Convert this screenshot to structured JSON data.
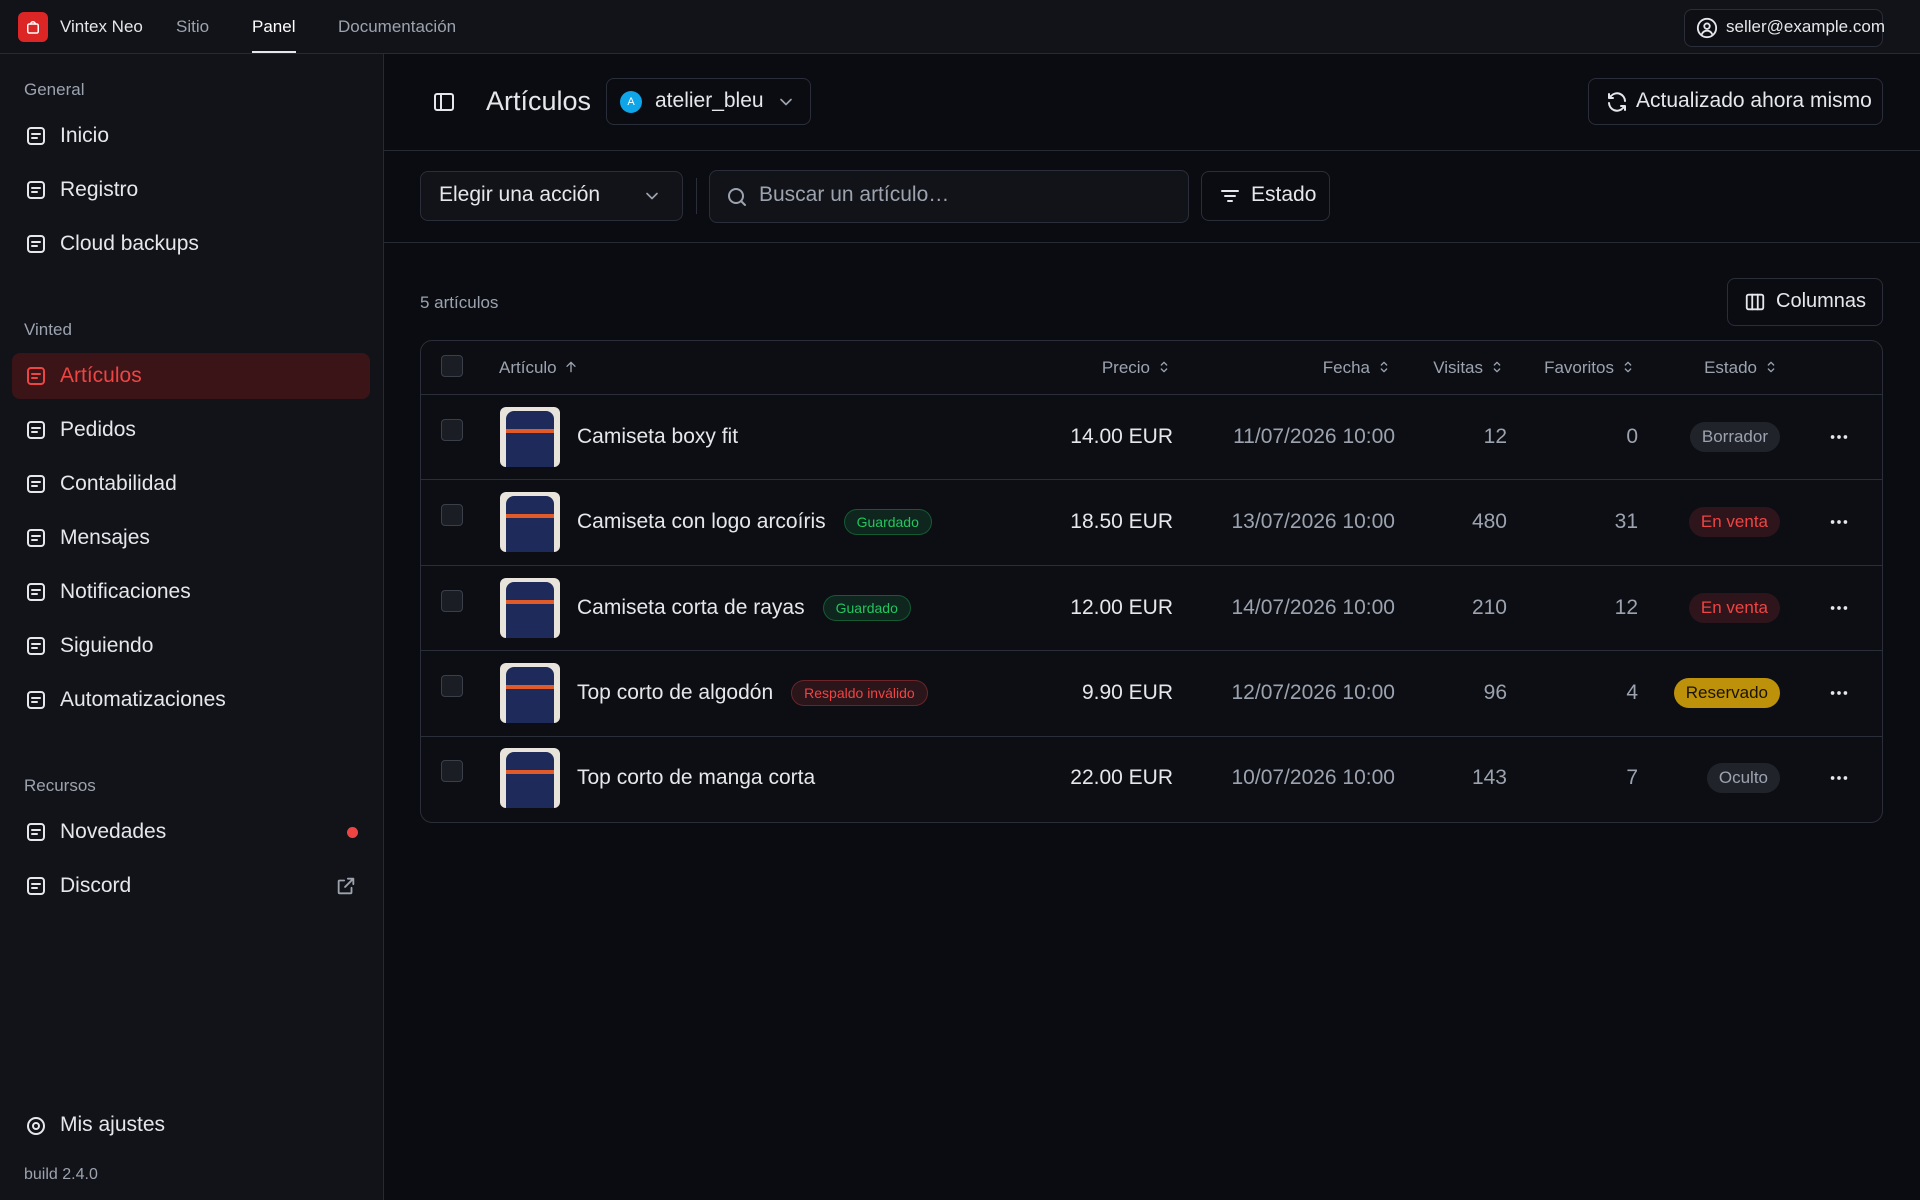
{
  "topbar": {
    "brand": "Vintex Neo",
    "nav": [
      "Sitio",
      "Panel",
      "Documentación"
    ],
    "user": "seller@example.com"
  },
  "sidebar": {
    "sections": [
      {
        "title": "General",
        "items": [
          "Inicio",
          "Registro",
          "Cloud backups"
        ]
      },
      {
        "title": "Vinted",
        "items": [
          "Artículos",
          "Pedidos",
          "Contabilidad",
          "Mensajes",
          "Notificaciones",
          "Siguiendo",
          "Automatizaciones"
        ]
      },
      {
        "title": "Recursos",
        "items": [
          "Novedades",
          "Discord"
        ]
      }
    ],
    "settings": "Mis ajustes",
    "build": "build 2.4.0"
  },
  "header": {
    "title": "Artículos",
    "account": "atelier_bleu",
    "account_initial": "A",
    "refresh": "Actualizado ahora mismo"
  },
  "toolbar": {
    "action": "Elegir una acción",
    "search_placeholder": "Buscar un artículo…",
    "filter": "Estado"
  },
  "count": "5 artículos",
  "columns_button": "Columnas",
  "table": {
    "columns": [
      "Artículo",
      "Precio",
      "Fecha",
      "Visitas",
      "Favoritos",
      "Estado"
    ],
    "rows": [
      {
        "name": "Camiseta boxy fit",
        "price": "14.00 EUR",
        "date": "11/07/2026 10:00",
        "views": 12,
        "favorites": 0,
        "status": "Borrador",
        "status_color": "#9ca3af"
      },
      {
        "name": "Camiseta con logo arcoíris",
        "tag": "Guardado",
        "tag_color": "#22c55e",
        "price": "18.50 EUR",
        "date": "13/07/2026 10:00",
        "views": 480,
        "favorites": 31,
        "status": "En venta",
        "status_color": "#ef4444"
      },
      {
        "name": "Camiseta corta de rayas",
        "tag": "Guardado",
        "tag_color": "#22c55e",
        "price": "12.00 EUR",
        "date": "14/07/2026 10:00",
        "views": 210,
        "favorites": 12,
        "status": "En venta",
        "status_color": "#ef4444"
      },
      {
        "name": "Top corto de algodón",
        "tag": "Respaldo inválido",
        "tag_color": "#ef4444",
        "price": "9.90 EUR",
        "date": "12/07/2026 10:00",
        "views": 96,
        "favorites": 4,
        "status": "Reservado",
        "status_color": "#eab308"
      },
      {
        "name": "Top corto de manga corta",
        "price": "22.00 EUR",
        "date": "10/07/2026 10:00",
        "views": 143,
        "favorites": 7,
        "status": "Oculto",
        "status_color": "#9ca3af"
      }
    ]
  }
}
